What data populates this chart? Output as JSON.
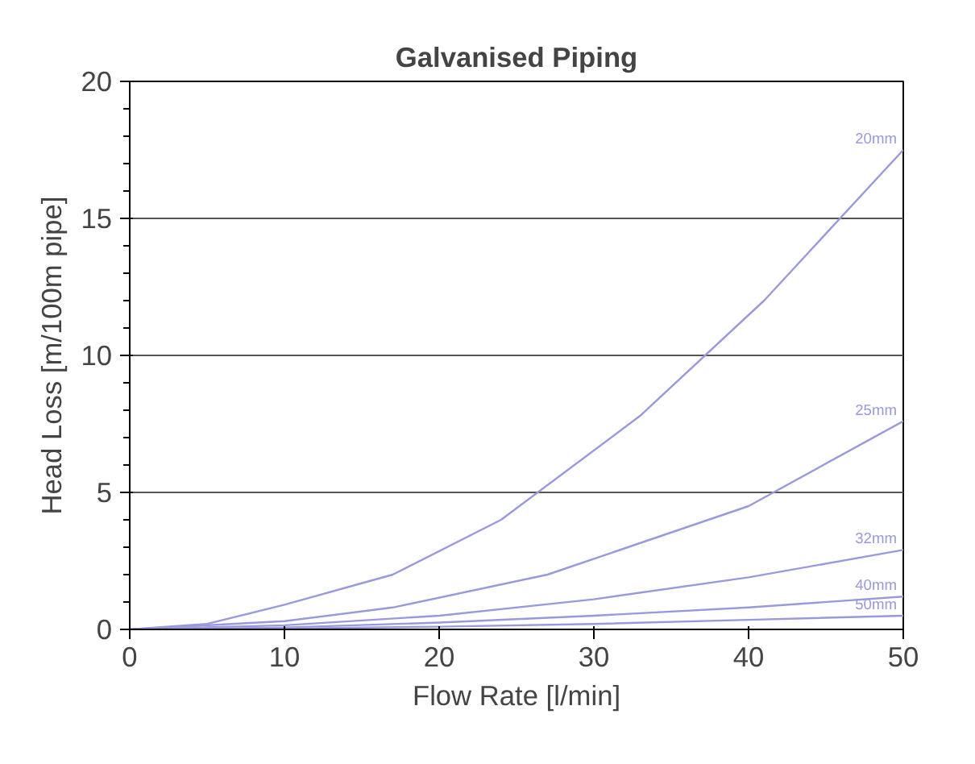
{
  "chart_data": {
    "type": "line",
    "title": "Galvanised Piping",
    "xlabel": "Flow Rate [l/min]",
    "ylabel": "Head Loss [m/100m pipe]",
    "xlim": [
      0,
      50
    ],
    "ylim": [
      0,
      20
    ],
    "xticks": [
      0,
      10,
      20,
      30,
      40,
      50
    ],
    "yticks": [
      0,
      5,
      10,
      15,
      20
    ],
    "grid": "y",
    "legend": false,
    "marker": "none",
    "line_style": "solid",
    "series": [
      {
        "name": "20mm",
        "color": "#9999dd",
        "x": [
          0,
          5,
          10,
          17,
          24,
          33,
          41,
          50
        ],
        "values": [
          0,
          0.2,
          0.9,
          2.0,
          4.0,
          7.8,
          12.0,
          17.5
        ]
      },
      {
        "name": "25mm",
        "color": "#9999dd",
        "x": [
          0,
          10,
          17,
          27,
          40,
          50
        ],
        "values": [
          0,
          0.3,
          0.8,
          2.0,
          4.5,
          7.6
        ]
      },
      {
        "name": "32mm",
        "color": "#9999dd",
        "x": [
          0,
          10,
          20,
          30,
          40,
          50
        ],
        "values": [
          0,
          0.15,
          0.5,
          1.1,
          1.9,
          2.9
        ]
      },
      {
        "name": "40mm",
        "color": "#9999dd",
        "x": [
          0,
          10,
          20,
          30,
          40,
          50
        ],
        "values": [
          0,
          0.07,
          0.25,
          0.5,
          0.8,
          1.2
        ]
      },
      {
        "name": "50mm",
        "color": "#9999dd",
        "x": [
          0,
          10,
          20,
          30,
          40,
          50
        ],
        "values": [
          0,
          0.03,
          0.1,
          0.2,
          0.35,
          0.5
        ]
      }
    ]
  }
}
